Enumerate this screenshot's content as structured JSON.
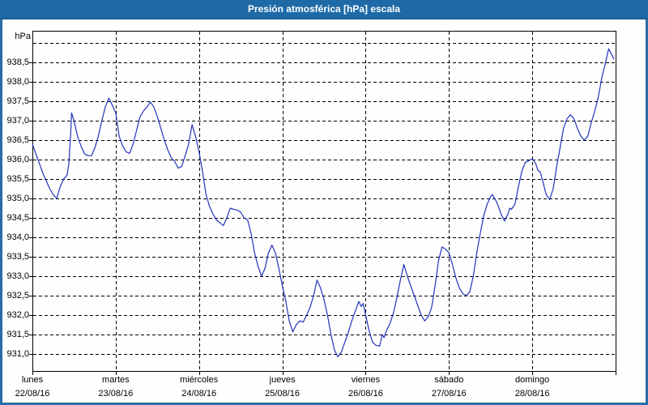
{
  "window": {
    "title": "Presión atmosférica [hPa] escala"
  },
  "colors": {
    "titlebar_bg": "#1e6aa7",
    "window_border": "#2a6ca5",
    "line_color": "#2233bb",
    "grid_color": "#000000",
    "text_color": "#000000",
    "plot_bg": "#fdfefd"
  },
  "chart_data": {
    "type": "line",
    "title": "Presión atmosférica [hPa] escala",
    "ylabel": "hPa",
    "xlabel": "",
    "grid": "dashed",
    "legend": "none",
    "ylim": [
      930.5625,
      939.3125
    ],
    "xlim_hours": [
      0,
      168
    ],
    "y_gridline_values": [
      939.0,
      938.5,
      938.0,
      937.5,
      937.0,
      936.5,
      936.0,
      935.5,
      935.0,
      934.5,
      934.0,
      933.5,
      933.0,
      932.5,
      932.0,
      931.5,
      931.0
    ],
    "y_tick_labels": [
      {
        "label": "938,5",
        "value": 938.5
      },
      {
        "label": "938,0",
        "value": 938.0
      },
      {
        "label": "937,5",
        "value": 937.5
      },
      {
        "label": "937,0",
        "value": 937.0
      },
      {
        "label": "936,5",
        "value": 936.5
      },
      {
        "label": "936,0",
        "value": 936.0
      },
      {
        "label": "935,5",
        "value": 935.5
      },
      {
        "label": "935,0",
        "value": 935.0
      },
      {
        "label": "934,5",
        "value": 934.5
      },
      {
        "label": "934,0",
        "value": 934.0
      },
      {
        "label": "933,5",
        "value": 933.5
      },
      {
        "label": "933,0",
        "value": 933.0
      },
      {
        "label": "932,5",
        "value": 932.5
      },
      {
        "label": "932,0",
        "value": 932.0
      },
      {
        "label": "931,5",
        "value": 931.5
      },
      {
        "label": "931,0",
        "value": 931.0
      }
    ],
    "x_day_labels": [
      {
        "name": "lunes",
        "date": "22/08/16",
        "hour": 0
      },
      {
        "name": "martes",
        "date": "23/08/16",
        "hour": 24
      },
      {
        "name": "miércoles",
        "date": "24/08/16",
        "hour": 48
      },
      {
        "name": "jueves",
        "date": "25/08/16",
        "hour": 72
      },
      {
        "name": "viernes",
        "date": "26/08/16",
        "hour": 96
      },
      {
        "name": "sábado",
        "date": "27/08/16",
        "hour": 120
      },
      {
        "name": "domingo",
        "date": "28/08/16",
        "hour": 144
      }
    ],
    "x_day_boundaries_hours": [
      0,
      24,
      48,
      72,
      96,
      120,
      144,
      168
    ],
    "series": [
      {
        "name": "Presión atmosférica",
        "unit": "hPa",
        "points": [
          [
            0,
            936.4
          ],
          [
            1,
            936.15
          ],
          [
            2,
            935.9
          ],
          [
            3,
            935.65
          ],
          [
            4,
            935.45
          ],
          [
            5,
            935.25
          ],
          [
            6,
            935.1
          ],
          [
            7,
            935.0
          ],
          [
            8,
            935.3
          ],
          [
            9,
            935.5
          ],
          [
            10,
            935.6
          ],
          [
            10.5,
            935.9
          ],
          [
            11,
            936.6
          ],
          [
            11.3,
            937.2
          ],
          [
            12,
            937.0
          ],
          [
            13,
            936.6
          ],
          [
            14,
            936.35
          ],
          [
            15,
            936.15
          ],
          [
            16,
            936.1
          ],
          [
            17,
            936.1
          ],
          [
            18,
            936.3
          ],
          [
            19,
            936.6
          ],
          [
            20,
            937.0
          ],
          [
            21,
            937.35
          ],
          [
            22,
            937.58
          ],
          [
            23,
            937.4
          ],
          [
            24,
            937.2
          ],
          [
            25,
            936.6
          ],
          [
            26,
            936.35
          ],
          [
            27,
            936.2
          ],
          [
            28,
            936.16
          ],
          [
            29,
            936.4
          ],
          [
            30,
            936.75
          ],
          [
            31,
            937.1
          ],
          [
            32,
            937.25
          ],
          [
            33,
            937.35
          ],
          [
            34,
            937.48
          ],
          [
            35,
            937.35
          ],
          [
            36,
            937.1
          ],
          [
            37,
            936.8
          ],
          [
            38,
            936.5
          ],
          [
            39,
            936.25
          ],
          [
            40,
            936.05
          ],
          [
            41,
            935.95
          ],
          [
            42,
            935.78
          ],
          [
            43,
            935.82
          ],
          [
            44,
            936.1
          ],
          [
            45,
            936.4
          ],
          [
            46,
            936.9
          ],
          [
            47,
            936.6
          ],
          [
            48,
            936.2
          ],
          [
            49,
            935.7
          ],
          [
            50,
            935.1
          ],
          [
            51,
            934.8
          ],
          [
            52,
            934.6
          ],
          [
            53,
            934.45
          ],
          [
            54,
            934.38
          ],
          [
            55,
            934.3
          ],
          [
            56,
            934.5
          ],
          [
            57,
            934.75
          ],
          [
            58,
            934.72
          ],
          [
            59,
            934.7
          ],
          [
            60,
            934.65
          ],
          [
            61,
            934.5
          ],
          [
            62,
            934.45
          ],
          [
            63,
            934.1
          ],
          [
            64,
            933.6
          ],
          [
            65,
            933.25
          ],
          [
            66,
            933.0
          ],
          [
            67,
            933.2
          ],
          [
            68,
            933.6
          ],
          [
            69,
            933.8
          ],
          [
            70,
            933.6
          ],
          [
            71,
            933.2
          ],
          [
            72,
            932.75
          ],
          [
            73,
            932.35
          ],
          [
            74,
            931.85
          ],
          [
            75,
            931.57
          ],
          [
            76,
            931.75
          ],
          [
            77,
            931.85
          ],
          [
            78,
            931.82
          ],
          [
            79,
            932.0
          ],
          [
            80,
            932.2
          ],
          [
            81,
            932.5
          ],
          [
            82,
            932.9
          ],
          [
            83,
            932.7
          ],
          [
            84,
            932.4
          ],
          [
            85,
            932.0
          ],
          [
            86,
            931.5
          ],
          [
            87,
            931.1
          ],
          [
            88,
            930.93
          ],
          [
            89,
            931.05
          ],
          [
            90,
            931.3
          ],
          [
            91,
            931.55
          ],
          [
            92,
            931.85
          ],
          [
            93,
            932.1
          ],
          [
            94,
            932.35
          ],
          [
            94.7,
            932.22
          ],
          [
            95.3,
            932.3
          ],
          [
            96,
            932.0
          ],
          [
            97,
            931.6
          ],
          [
            98,
            931.3
          ],
          [
            99,
            931.22
          ],
          [
            100,
            931.2
          ],
          [
            100.8,
            931.5
          ],
          [
            101.3,
            931.42
          ],
          [
            102,
            931.6
          ],
          [
            103,
            931.78
          ],
          [
            104,
            932.05
          ],
          [
            105,
            932.45
          ],
          [
            106,
            932.9
          ],
          [
            107,
            933.3
          ],
          [
            108,
            933.0
          ],
          [
            109,
            932.75
          ],
          [
            110,
            932.5
          ],
          [
            111,
            932.25
          ],
          [
            112,
            932.0
          ],
          [
            113,
            931.85
          ],
          [
            114,
            931.95
          ],
          [
            115,
            932.2
          ],
          [
            116,
            932.75
          ],
          [
            117,
            933.4
          ],
          [
            118,
            933.75
          ],
          [
            119,
            933.7
          ],
          [
            120,
            933.6
          ],
          [
            121,
            933.3
          ],
          [
            122,
            932.95
          ],
          [
            123,
            932.7
          ],
          [
            124,
            932.55
          ],
          [
            125,
            932.5
          ],
          [
            126,
            932.6
          ],
          [
            127,
            933.0
          ],
          [
            128,
            933.6
          ],
          [
            129,
            934.1
          ],
          [
            130,
            934.55
          ],
          [
            131,
            934.85
          ],
          [
            132,
            935.05
          ],
          [
            132.5,
            935.1
          ],
          [
            133.5,
            934.95
          ],
          [
            134,
            934.85
          ],
          [
            135,
            934.6
          ],
          [
            136,
            934.42
          ],
          [
            137,
            934.6
          ],
          [
            137.5,
            934.75
          ],
          [
            138,
            934.72
          ],
          [
            139,
            934.85
          ],
          [
            140,
            935.3
          ],
          [
            141,
            935.7
          ],
          [
            142,
            935.93
          ],
          [
            143,
            935.97
          ],
          [
            144,
            936.02
          ],
          [
            145,
            935.9
          ],
          [
            145.6,
            935.72
          ],
          [
            146.3,
            935.68
          ],
          [
            147,
            935.45
          ],
          [
            148,
            935.1
          ],
          [
            149,
            934.97
          ],
          [
            150,
            935.25
          ],
          [
            151,
            935.8
          ],
          [
            152,
            936.3
          ],
          [
            153,
            936.8
          ],
          [
            154,
            937.05
          ],
          [
            155,
            937.15
          ],
          [
            156,
            937.05
          ],
          [
            157,
            936.8
          ],
          [
            158,
            936.6
          ],
          [
            159,
            936.5
          ],
          [
            160,
            936.6
          ],
          [
            161,
            936.95
          ],
          [
            162,
            937.25
          ],
          [
            163,
            937.6
          ],
          [
            164,
            938.1
          ],
          [
            165,
            938.45
          ],
          [
            166,
            938.85
          ],
          [
            167,
            938.68
          ],
          [
            167.5,
            938.58
          ]
        ]
      }
    ]
  }
}
